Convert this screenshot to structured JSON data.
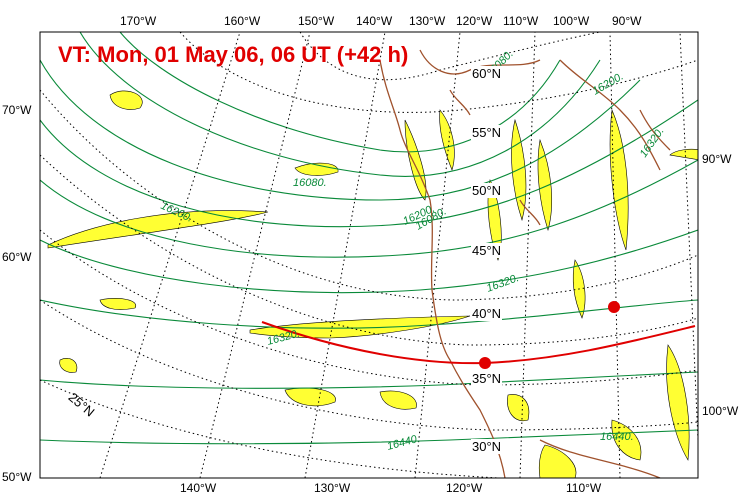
{
  "title": "VT:  Mon, 01 May 06, 06 UT (+42 h)",
  "top_lon_labels": [
    "170°W",
    "160°W",
    "150°W",
    "140°W",
    "130°W",
    "120°W",
    "110°W",
    "100°W",
    "90°W"
  ],
  "bottom_lon_labels": [
    "140°W",
    "130°W",
    "120°W",
    "110°W"
  ],
  "left_labels": [
    "70°W",
    "60°W",
    "50°W"
  ],
  "right_labels": [
    "90°W",
    "100°W"
  ],
  "interior_lat_labels": [
    "60°N",
    "55°N",
    "50°N",
    "45°N",
    "40°N",
    "35°N",
    "30°N",
    "25°N"
  ],
  "contour_labels": [
    "16080.",
    "16080.",
    "16200.",
    "16200.",
    "16200.",
    "16320.",
    "16320.",
    "16320.",
    "16440.",
    "16440.",
    "16080."
  ],
  "colors": {
    "title": "#e00000",
    "contours": "#0a8a3a",
    "coastline": "#a0522d",
    "shading": "#ffff00",
    "trajectory": "#e00000"
  }
}
